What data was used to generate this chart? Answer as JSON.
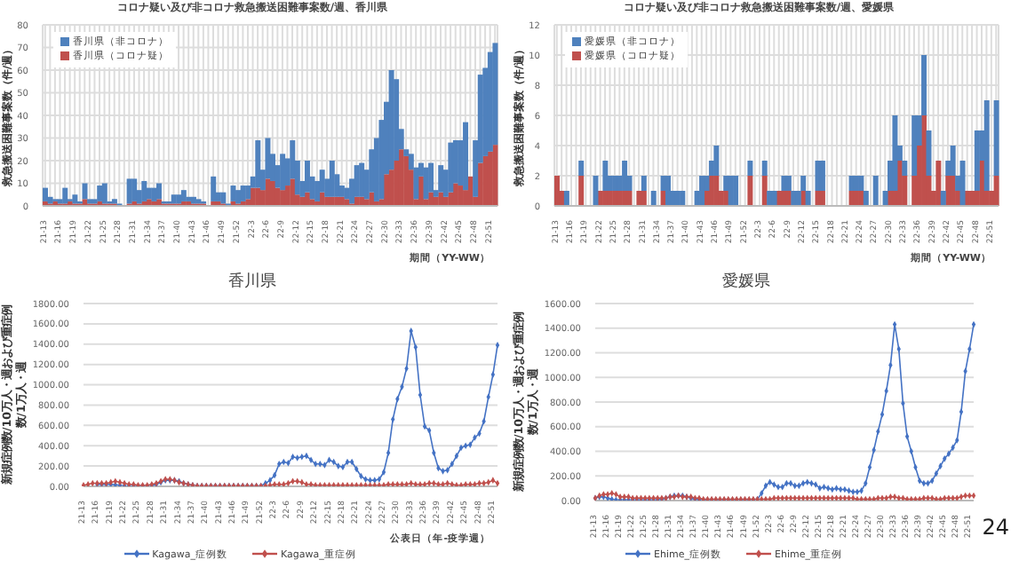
{
  "chart_data": [
    {
      "type": "bar",
      "stacked": true,
      "title": "コロナ疑い及び非コロナ救急搬送困難事案数/週、香川県",
      "ylabel": "救急搬送困難事案数（件/週）",
      "xlabel": "期間（YY-WW）",
      "grid": true,
      "legend": "top left",
      "ylim": [
        0,
        80
      ],
      "yticks": [
        0,
        10,
        20,
        30,
        40,
        50,
        60,
        70,
        80
      ],
      "categories": [
        "21-13",
        null,
        null,
        "21-16",
        null,
        null,
        "21-19",
        null,
        null,
        "21-22",
        null,
        null,
        "21-25",
        null,
        null,
        "21-28",
        null,
        null,
        "21-31",
        null,
        null,
        "21-34",
        null,
        null,
        "21-37",
        null,
        null,
        "21-40",
        null,
        null,
        "21-43",
        null,
        null,
        "21-46",
        null,
        null,
        "21-49",
        null,
        null,
        "21-52",
        null,
        null,
        "22-3",
        null,
        null,
        "22-6",
        null,
        null,
        "22-9",
        null,
        null,
        "22-12",
        null,
        null,
        "22-15",
        null,
        null,
        "22-18",
        null,
        null,
        "22-21",
        null,
        null,
        "22-24",
        null,
        null,
        "22-27",
        null,
        null,
        "22-30",
        null,
        null,
        "22-33",
        null,
        null,
        "22-36",
        null,
        null,
        "22-39",
        null,
        null,
        "22-42",
        null,
        null,
        "22-45",
        null,
        null,
        "22-48",
        null,
        null,
        "22-51",
        null
      ],
      "series": [
        {
          "name": "香川県（コロナ疑）",
          "color": "#c0504d",
          "values": [
            2,
            1,
            2,
            1,
            1,
            2,
            1,
            1,
            3,
            1,
            1,
            2,
            1,
            1,
            1,
            0,
            0,
            1,
            2,
            1,
            2,
            3,
            2,
            3,
            1,
            1,
            1,
            1,
            2,
            2,
            1,
            1,
            1,
            0,
            2,
            2,
            1,
            0,
            2,
            1,
            2,
            3,
            8,
            8,
            7,
            12,
            11,
            8,
            7,
            9,
            12,
            5,
            4,
            6,
            3,
            2,
            6,
            4,
            4,
            4,
            4,
            3,
            1,
            4,
            4,
            3,
            6,
            2,
            3,
            14,
            16,
            20,
            25,
            22,
            16,
            3,
            13,
            3,
            6,
            4,
            6,
            4,
            6,
            10,
            9,
            7,
            13,
            4,
            19,
            22,
            24,
            27
          ]
        },
        {
          "name": "香川県（非コロナ）",
          "color": "#4f81bd",
          "values": [
            6,
            3,
            1,
            2,
            7,
            1,
            4,
            1,
            7,
            2,
            2,
            7,
            9,
            1,
            2,
            1,
            0,
            11,
            10,
            6,
            9,
            5,
            6,
            7,
            1,
            1,
            4,
            4,
            5,
            2,
            3,
            2,
            1,
            0,
            11,
            4,
            5,
            1,
            7,
            6,
            7,
            6,
            5,
            21,
            9,
            18,
            12,
            10,
            16,
            12,
            17,
            15,
            7,
            14,
            10,
            9,
            10,
            8,
            16,
            10,
            5,
            5,
            11,
            14,
            15,
            13,
            19,
            28,
            35,
            32,
            44,
            36,
            9,
            3,
            7,
            14,
            6,
            14,
            13,
            3,
            12,
            12,
            22,
            19,
            20,
            30,
            0,
            25,
            39,
            39,
            44,
            45
          ]
        }
      ]
    },
    {
      "type": "bar",
      "stacked": true,
      "title": "コロナ疑い及び非コロナ救急搬送困難事案数/週、愛媛県",
      "ylabel": "救急搬送困難事案数（件/週）",
      "xlabel": "期間（YY-WW）",
      "grid": true,
      "legend": "top left",
      "ylim": [
        0,
        12
      ],
      "yticks": [
        0,
        2,
        4,
        6,
        8,
        10,
        12
      ],
      "categories": [
        "21-13",
        null,
        null,
        "21-16",
        null,
        null,
        "21-19",
        null,
        null,
        "21-22",
        null,
        null,
        "21-25",
        null,
        null,
        "21-28",
        null,
        null,
        "21-31",
        null,
        null,
        "21-34",
        null,
        null,
        "21-37",
        null,
        null,
        "21-40",
        null,
        null,
        "21-43",
        null,
        null,
        "21-46",
        null,
        null,
        "21-49",
        null,
        null,
        "21-52",
        null,
        null,
        "22-3",
        null,
        null,
        "22-6",
        null,
        null,
        "22-9",
        null,
        null,
        "22-12",
        null,
        null,
        "22-15",
        null,
        null,
        "22-18",
        null,
        null,
        "22-21",
        null,
        null,
        "22-24",
        null,
        null,
        "22-27",
        null,
        null,
        "22-30",
        null,
        null,
        "22-33",
        null,
        null,
        "22-36",
        null,
        null,
        "22-39",
        null,
        null,
        "22-42",
        null,
        null,
        "22-45",
        null,
        null,
        "22-48",
        null,
        null,
        "22-51",
        null
      ],
      "series": [
        {
          "name": "愛媛県（コロナ疑）",
          "color": "#c0504d",
          "values": [
            2,
            1,
            0,
            0,
            0,
            2,
            0,
            0,
            0,
            1,
            1,
            1,
            1,
            1,
            1,
            1,
            0,
            1,
            1,
            0,
            0,
            0,
            1,
            0,
            0,
            0,
            0,
            0,
            0,
            0,
            0,
            1,
            2,
            2,
            1,
            1,
            0,
            0,
            0,
            0,
            2,
            0,
            0,
            2,
            0,
            0,
            1,
            1,
            1,
            0,
            0,
            1,
            0,
            0,
            1,
            1,
            0,
            0,
            0,
            0,
            0,
            1,
            1,
            1,
            0,
            0,
            0,
            0,
            0,
            1,
            1,
            3,
            2,
            0,
            2,
            4,
            6,
            2,
            1,
            3,
            0,
            2,
            2,
            1,
            0,
            1,
            1,
            1,
            3,
            1,
            1,
            2
          ]
        },
        {
          "name": "愛媛県（非コロナ）",
          "color": "#4f81bd",
          "values": [
            0,
            0,
            1,
            0,
            0,
            1,
            0,
            0,
            2,
            0,
            2,
            1,
            1,
            1,
            2,
            1,
            0,
            0,
            1,
            0,
            1,
            0,
            1,
            2,
            1,
            1,
            1,
            0,
            0,
            1,
            2,
            1,
            1,
            2,
            0,
            1,
            2,
            2,
            0,
            0,
            1,
            0,
            0,
            1,
            1,
            1,
            0,
            1,
            1,
            1,
            1,
            1,
            1,
            0,
            2,
            2,
            0,
            0,
            0,
            0,
            0,
            1,
            1,
            1,
            1,
            0,
            2,
            0,
            1,
            2,
            5,
            1,
            1,
            0,
            4,
            2,
            4,
            3,
            0,
            0,
            1,
            1,
            2,
            1,
            3,
            0,
            0,
            4,
            2,
            6,
            0,
            5
          ]
        }
      ]
    },
    {
      "type": "line",
      "title": "香川県",
      "ylabel": "新規症例数/10万人・週および重症例数/1万人・週",
      "xlabel": "公表日（年-疫学週）",
      "grid": "y",
      "legend": "bottom",
      "marker": "diamond",
      "ylim": [
        0,
        1800
      ],
      "yticks": [
        {
          "value": 0,
          "label": "0.00"
        },
        {
          "value": 200,
          "label": "200.00"
        },
        {
          "value": 400,
          "label": "400.00"
        },
        {
          "value": 600,
          "label": "600.00"
        },
        {
          "value": 800,
          "label": "800.00"
        },
        {
          "value": 1000,
          "label": "1000.00"
        },
        {
          "value": 1200,
          "label": "1200.00"
        },
        {
          "value": 1400,
          "label": "1400.00"
        },
        {
          "value": 1600,
          "label": "1600.00"
        },
        {
          "value": 1800,
          "label": "1800.00"
        }
      ],
      "categories": [
        "21-13",
        null,
        null,
        "21-16",
        null,
        null,
        "21-19",
        null,
        null,
        "21-22",
        null,
        null,
        "21-25",
        null,
        null,
        "21-28",
        null,
        null,
        "21-31",
        null,
        null,
        "21-34",
        null,
        null,
        "21-37",
        null,
        null,
        "21-40",
        null,
        null,
        "21-43",
        null,
        null,
        "21-46",
        null,
        null,
        "21-49",
        null,
        null,
        "21-52",
        null,
        null,
        "22-3",
        null,
        null,
        "22-6",
        null,
        null,
        "22-9",
        null,
        null,
        "22-12",
        null,
        null,
        "22-15",
        null,
        null,
        "22-18",
        null,
        null,
        "22-21",
        null,
        null,
        "22-24",
        null,
        null,
        "22-27",
        null,
        null,
        "22-30",
        null,
        null,
        "22-33",
        null,
        null,
        "22-36",
        null,
        null,
        "22-39",
        null,
        null,
        "22-42",
        null,
        null,
        "22-45",
        null,
        null,
        "22-48",
        null,
        null,
        "22-51",
        null
      ],
      "series": [
        {
          "name": "Kagawa_症例数",
          "color": "#4472c4",
          "values": [
            null,
            null,
            null,
            20,
            20,
            20,
            20,
            15,
            10,
            5,
            5,
            5,
            5,
            5,
            5,
            10,
            20,
            40,
            60,
            60,
            60,
            50,
            30,
            20,
            10,
            5,
            5,
            5,
            5,
            5,
            5,
            5,
            5,
            5,
            5,
            5,
            5,
            5,
            5,
            5,
            30,
            60,
            110,
            220,
            240,
            230,
            290,
            280,
            290,
            300,
            260,
            220,
            220,
            210,
            260,
            240,
            200,
            190,
            240,
            240,
            170,
            100,
            70,
            60,
            60,
            70,
            140,
            330,
            660,
            860,
            980,
            1160,
            1530,
            1370,
            900,
            590,
            550,
            330,
            180,
            150,
            160,
            220,
            300,
            380,
            400,
            410,
            480,
            520,
            640,
            880,
            1100,
            1390
          ]
        },
        {
          "name": "Kagawa_重症例",
          "color": "#c0504d",
          "values": [
            10,
            20,
            30,
            30,
            30,
            30,
            40,
            50,
            40,
            30,
            20,
            20,
            10,
            10,
            10,
            20,
            30,
            50,
            70,
            70,
            60,
            40,
            30,
            20,
            10,
            5,
            5,
            5,
            5,
            5,
            5,
            5,
            5,
            5,
            5,
            5,
            5,
            5,
            5,
            5,
            5,
            10,
            20,
            20,
            20,
            30,
            50,
            50,
            40,
            20,
            20,
            10,
            10,
            10,
            10,
            10,
            10,
            10,
            10,
            10,
            10,
            10,
            10,
            10,
            10,
            10,
            10,
            20,
            20,
            20,
            20,
            20,
            30,
            20,
            20,
            20,
            30,
            30,
            20,
            20,
            30,
            20,
            10,
            10,
            20,
            20,
            20,
            30,
            30,
            40,
            60,
            30
          ]
        }
      ]
    },
    {
      "type": "line",
      "title": "愛媛県",
      "ylabel": "新規症例数/10万人・週および重症例数/1万人・週",
      "grid": "y",
      "legend": "bottom",
      "marker": "diamond",
      "ylim": [
        0,
        1600
      ],
      "yticks": [
        {
          "value": 0,
          "label": "0.00"
        },
        {
          "value": 200,
          "label": "200.00"
        },
        {
          "value": 400,
          "label": "400.00"
        },
        {
          "value": 600,
          "label": "600.00"
        },
        {
          "value": 800,
          "label": "800.00"
        },
        {
          "value": 1000,
          "label": "1000.00"
        },
        {
          "value": 1200,
          "label": "1200.00"
        },
        {
          "value": 1400,
          "label": "1400.00"
        },
        {
          "value": 1600,
          "label": "1600.00"
        }
      ],
      "annotations": [
        "24"
      ],
      "categories": [
        "21-13",
        null,
        null,
        "21-16",
        null,
        null,
        "21-19",
        null,
        null,
        "21-22",
        null,
        null,
        "21-25",
        null,
        null,
        "21-28",
        null,
        null,
        "21-31",
        null,
        null,
        "21-34",
        null,
        null,
        "21-37",
        null,
        null,
        "21-40",
        null,
        null,
        "21-43",
        null,
        null,
        "21-46",
        null,
        null,
        "21-49",
        null,
        null,
        "21-52",
        null,
        null,
        "22-3",
        null,
        null,
        "22-6",
        null,
        null,
        "22-9",
        null,
        null,
        "22-12",
        null,
        null,
        "22-15",
        null,
        null,
        "22-18",
        null,
        null,
        "22-21",
        null,
        null,
        "22-24",
        null,
        null,
        "22-27",
        null,
        null,
        "22-30",
        null,
        null,
        "22-33",
        null,
        null,
        "22-36",
        null,
        null,
        "22-39",
        null,
        null,
        "22-42",
        null,
        null,
        "22-45",
        null,
        null,
        "22-48",
        null,
        null,
        "22-51",
        null
      ],
      "series": [
        {
          "name": "Ehime_症例数",
          "color": "#4472c4",
          "values": [
            20,
            30,
            30,
            20,
            10,
            5,
            5,
            5,
            5,
            5,
            5,
            5,
            5,
            5,
            5,
            5,
            10,
            20,
            30,
            40,
            40,
            40,
            30,
            20,
            10,
            5,
            5,
            5,
            5,
            5,
            5,
            5,
            5,
            5,
            5,
            5,
            5,
            5,
            5,
            10,
            60,
            120,
            150,
            130,
            110,
            110,
            140,
            140,
            120,
            120,
            140,
            150,
            140,
            130,
            100,
            110,
            100,
            90,
            100,
            90,
            90,
            80,
            70,
            70,
            80,
            140,
            270,
            410,
            560,
            700,
            890,
            1100,
            1430,
            1230,
            790,
            520,
            400,
            270,
            160,
            140,
            140,
            160,
            220,
            280,
            340,
            380,
            430,
            490,
            720,
            1050,
            1230,
            1430
          ]
        },
        {
          "name": "Ehime_重症例",
          "color": "#c0504d",
          "values": [
            20,
            40,
            50,
            50,
            60,
            50,
            30,
            30,
            30,
            20,
            20,
            20,
            20,
            20,
            20,
            20,
            20,
            20,
            30,
            30,
            40,
            30,
            30,
            30,
            20,
            20,
            10,
            10,
            10,
            10,
            10,
            10,
            10,
            10,
            10,
            10,
            10,
            10,
            10,
            10,
            10,
            10,
            10,
            20,
            20,
            20,
            20,
            20,
            20,
            20,
            20,
            20,
            20,
            20,
            20,
            20,
            20,
            20,
            20,
            20,
            20,
            20,
            20,
            10,
            10,
            10,
            10,
            10,
            20,
            20,
            20,
            30,
            30,
            20,
            20,
            10,
            10,
            10,
            10,
            20,
            20,
            20,
            10,
            10,
            20,
            20,
            20,
            20,
            30,
            40,
            40,
            40
          ]
        }
      ]
    }
  ]
}
